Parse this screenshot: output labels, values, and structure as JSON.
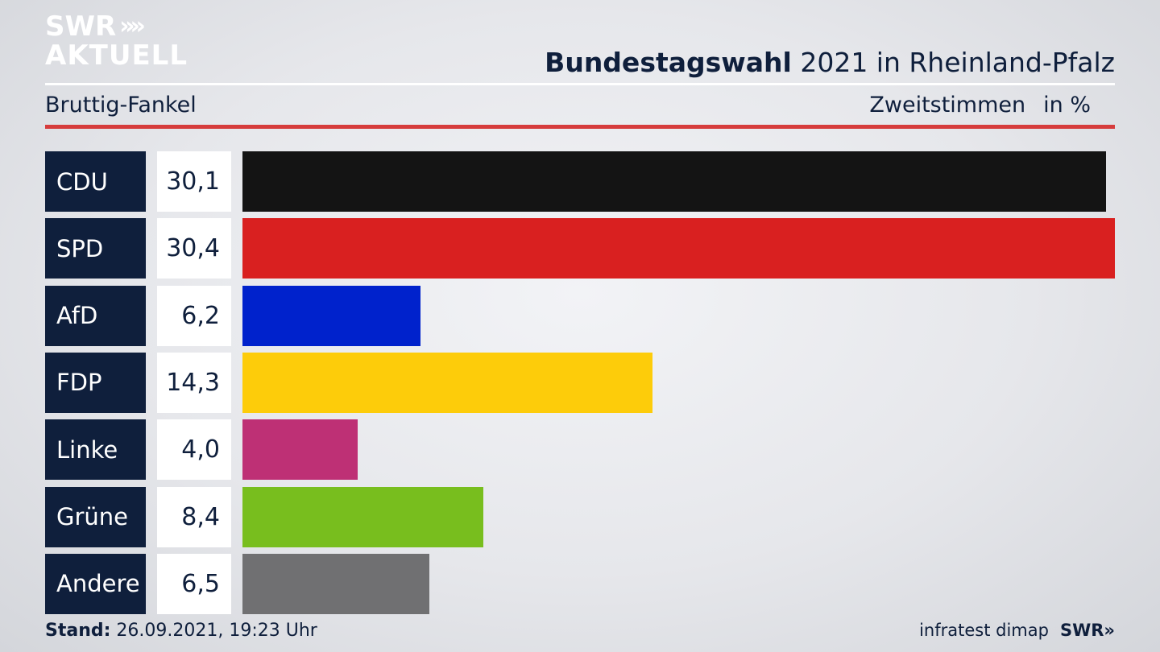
{
  "logo": {
    "line1": "SWR",
    "line2": "AKTUELL",
    "chevrons": "»",
    "color": "#ffffff"
  },
  "header": {
    "title_bold": "Bundestagswahl",
    "title_rest": "2021 in Rheinland-Pfalz",
    "subtitle": "Bruttig-Fankel",
    "vote_type": "Zweitstimmen",
    "unit": "in %"
  },
  "accent_color": "#d63c3c",
  "chart_data": {
    "type": "bar",
    "orientation": "horizontal",
    "categories": [
      "CDU",
      "SPD",
      "AfD",
      "FDP",
      "Linke",
      "Grüne",
      "Andere"
    ],
    "values": [
      30.1,
      30.4,
      6.2,
      14.3,
      4.0,
      8.4,
      6.5
    ],
    "value_labels": [
      "30,1",
      "30,4",
      "6,2",
      "14,3",
      "4,0",
      "8,4",
      "6,5"
    ],
    "colors": [
      "#141414",
      "#d92020",
      "#0022cc",
      "#fdcc0a",
      "#be3075",
      "#78be1e",
      "#707072"
    ],
    "title": "Bundestagswahl 2021 in Rheinland-Pfalz",
    "subtitle": "Bruttig-Fankel",
    "xlabel": "",
    "ylabel": "Zweitstimmen in %",
    "grid": false
  },
  "footer": {
    "stand_label": "Stand:",
    "stand_value": "26.09.2021, 19:23 Uhr",
    "source": "infratest dimap",
    "brand": "SWR»"
  }
}
